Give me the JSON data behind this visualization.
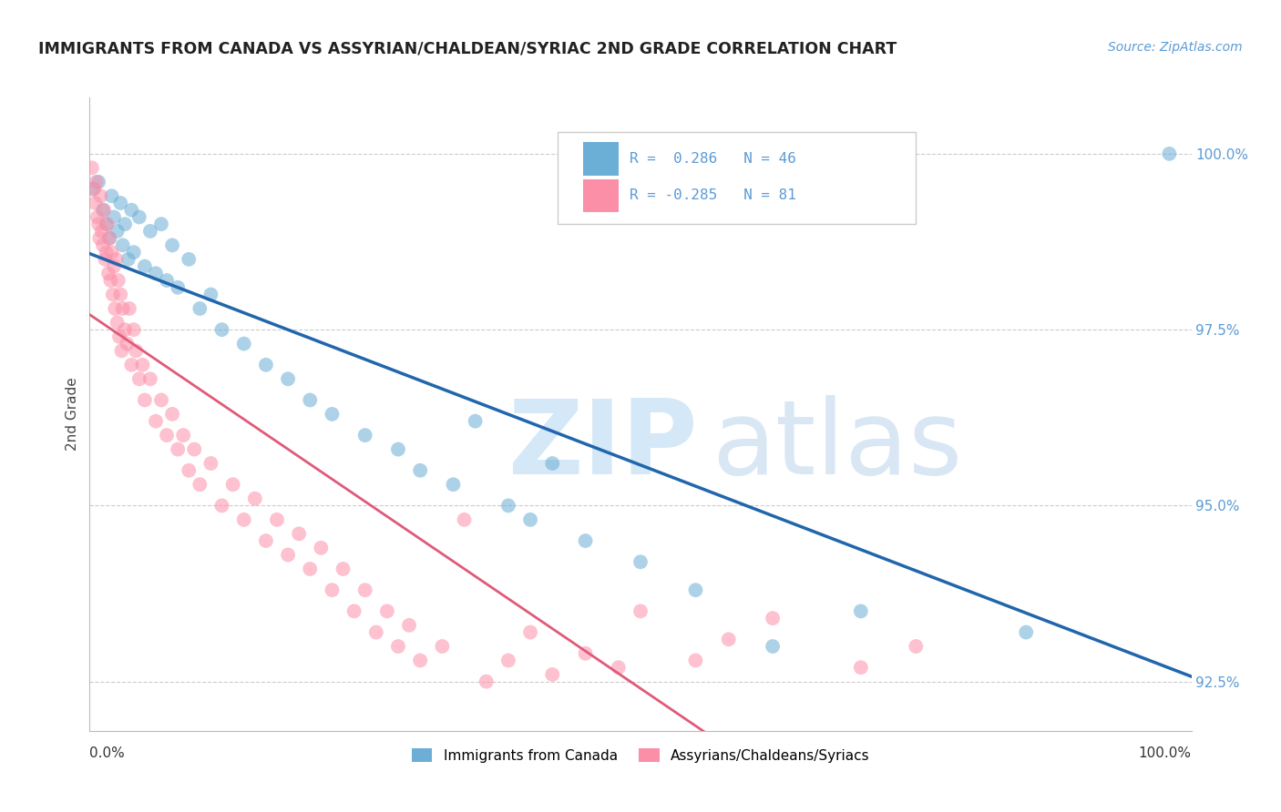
{
  "title": "IMMIGRANTS FROM CANADA VS ASSYRIAN/CHALDEAN/SYRIAC 2ND GRADE CORRELATION CHART",
  "source": "Source: ZipAtlas.com",
  "ylabel": "2nd Grade",
  "yticks": [
    92.5,
    95.0,
    97.5,
    100.0
  ],
  "ytick_labels": [
    "92.5%",
    "95.0%",
    "97.5%",
    "100.0%"
  ],
  "legend_blue_label": "Immigrants from Canada",
  "legend_pink_label": "Assyrians/Chaldeans/Syriacs",
  "R_blue": 0.286,
  "N_blue": 46,
  "R_pink": -0.285,
  "N_pink": 81,
  "blue_color": "#6baed6",
  "pink_color": "#fc8fa8",
  "trend_blue_color": "#2166ac",
  "trend_pink_color": "#e05a7a",
  "background_color": "#ffffff",
  "blue_points_x": [
    0.3,
    0.8,
    1.2,
    1.5,
    1.8,
    2.0,
    2.2,
    2.5,
    2.8,
    3.0,
    3.2,
    3.5,
    3.8,
    4.0,
    4.5,
    5.0,
    5.5,
    6.0,
    6.5,
    7.0,
    7.5,
    8.0,
    9.0,
    10.0,
    11.0,
    12.0,
    14.0,
    16.0,
    18.0,
    20.0,
    22.0,
    25.0,
    28.0,
    30.0,
    33.0,
    35.0,
    38.0,
    40.0,
    42.0,
    45.0,
    50.0,
    55.0,
    62.0,
    70.0,
    85.0,
    98.0
  ],
  "blue_points_y": [
    99.5,
    99.6,
    99.2,
    99.0,
    98.8,
    99.4,
    99.1,
    98.9,
    99.3,
    98.7,
    99.0,
    98.5,
    99.2,
    98.6,
    99.1,
    98.4,
    98.9,
    98.3,
    99.0,
    98.2,
    98.7,
    98.1,
    98.5,
    97.8,
    98.0,
    97.5,
    97.3,
    97.0,
    96.8,
    96.5,
    96.3,
    96.0,
    95.8,
    95.5,
    95.3,
    96.2,
    95.0,
    94.8,
    95.6,
    94.5,
    94.2,
    93.8,
    93.0,
    93.5,
    93.2,
    100.0
  ],
  "pink_points_x": [
    0.2,
    0.4,
    0.5,
    0.6,
    0.7,
    0.8,
    0.9,
    1.0,
    1.1,
    1.2,
    1.3,
    1.4,
    1.5,
    1.6,
    1.7,
    1.8,
    1.9,
    2.0,
    2.1,
    2.2,
    2.3,
    2.4,
    2.5,
    2.6,
    2.7,
    2.8,
    2.9,
    3.0,
    3.2,
    3.4,
    3.6,
    3.8,
    4.0,
    4.2,
    4.5,
    4.8,
    5.0,
    5.5,
    6.0,
    6.5,
    7.0,
    7.5,
    8.0,
    8.5,
    9.0,
    9.5,
    10.0,
    11.0,
    12.0,
    13.0,
    14.0,
    15.0,
    16.0,
    17.0,
    18.0,
    19.0,
    20.0,
    21.0,
    22.0,
    23.0,
    24.0,
    25.0,
    26.0,
    27.0,
    28.0,
    29.0,
    30.0,
    32.0,
    34.0,
    36.0,
    38.0,
    40.0,
    42.0,
    45.0,
    48.0,
    50.0,
    55.0,
    58.0,
    62.0,
    70.0,
    75.0
  ],
  "pink_points_y": [
    99.8,
    99.5,
    99.3,
    99.6,
    99.1,
    99.0,
    98.8,
    99.4,
    98.9,
    98.7,
    99.2,
    98.5,
    98.6,
    99.0,
    98.3,
    98.8,
    98.2,
    98.6,
    98.0,
    98.4,
    97.8,
    98.5,
    97.6,
    98.2,
    97.4,
    98.0,
    97.2,
    97.8,
    97.5,
    97.3,
    97.8,
    97.0,
    97.5,
    97.2,
    96.8,
    97.0,
    96.5,
    96.8,
    96.2,
    96.5,
    96.0,
    96.3,
    95.8,
    96.0,
    95.5,
    95.8,
    95.3,
    95.6,
    95.0,
    95.3,
    94.8,
    95.1,
    94.5,
    94.8,
    94.3,
    94.6,
    94.1,
    94.4,
    93.8,
    94.1,
    93.5,
    93.8,
    93.2,
    93.5,
    93.0,
    93.3,
    92.8,
    93.0,
    94.8,
    92.5,
    92.8,
    93.2,
    92.6,
    92.9,
    92.7,
    93.5,
    92.8,
    93.1,
    93.4,
    92.7,
    93.0
  ]
}
